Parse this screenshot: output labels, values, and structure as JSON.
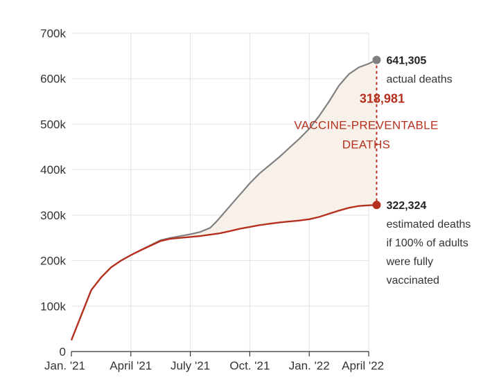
{
  "chart_data": {
    "type": "line",
    "title": "",
    "xlabel": "",
    "ylabel": "",
    "ylim": [
      0,
      700000
    ],
    "grid": true,
    "y_ticks": [
      0,
      100000,
      200000,
      300000,
      400000,
      500000,
      600000,
      700000
    ],
    "y_tick_labels": [
      "0",
      "100k",
      "200k",
      "300k",
      "400k",
      "500k",
      "600k",
      "700k"
    ],
    "x_tick_labels": [
      "Jan. '21",
      "April '21",
      "July '21",
      "Oct. '21",
      "Jan. '22",
      "April '22"
    ],
    "x_tick_months": [
      0,
      3,
      6,
      9,
      12,
      15
    ],
    "series": [
      {
        "id": "actual",
        "color": "#808080",
        "x": [
          0,
          0.5,
          1,
          1.5,
          2,
          2.5,
          3,
          3.5,
          4,
          4.5,
          5,
          5.5,
          6,
          6.5,
          7,
          7.3,
          7.6,
          8,
          8.5,
          9,
          9.5,
          10,
          10.5,
          11,
          11.5,
          12,
          12.5,
          13,
          13.5,
          14,
          14.5,
          15,
          15.4
        ],
        "values": [
          25000,
          80000,
          135000,
          163000,
          185000,
          200000,
          212000,
          223000,
          234000,
          245000,
          250000,
          254000,
          258000,
          263000,
          272000,
          285000,
          300000,
          320000,
          345000,
          370000,
          392000,
          410000,
          428000,
          448000,
          468000,
          490000,
          518000,
          550000,
          585000,
          610000,
          625000,
          633000,
          641305
        ]
      },
      {
        "id": "estimated",
        "color": "#b5301e",
        "x": [
          0,
          0.5,
          1,
          1.5,
          2,
          2.5,
          3,
          3.5,
          4,
          4.5,
          5,
          5.5,
          6,
          6.5,
          7,
          7.5,
          8,
          8.5,
          9,
          9.5,
          10,
          10.5,
          11,
          11.5,
          12,
          12.5,
          13,
          13.5,
          14,
          14.5,
          15,
          15.4
        ],
        "values": [
          25000,
          80000,
          135000,
          163000,
          185000,
          200000,
          212000,
          223000,
          233000,
          243000,
          248000,
          250000,
          252000,
          254000,
          257000,
          260000,
          265000,
          270000,
          274000,
          278000,
          281000,
          284000,
          286000,
          288000,
          291000,
          296000,
          303000,
          310000,
          316000,
          320000,
          321500,
          322324
        ]
      }
    ],
    "annotations": {
      "actual_value": "641,305",
      "actual_label": "actual deaths",
      "estimated_value": "322,324",
      "estimated_label_lines": [
        "estimated deaths",
        "if 100% of adults",
        "were fully",
        "vaccinated"
      ],
      "gap_value": "318,981",
      "gap_label_lines": [
        "VACCINE-PREVENTABLE",
        "DEATHS"
      ]
    },
    "colors": {
      "actual": "#808080",
      "estimated": "#b5301e",
      "gap_fill": "#f7f1ea",
      "grid": "#e2e2e2",
      "axis": "#333333"
    }
  }
}
